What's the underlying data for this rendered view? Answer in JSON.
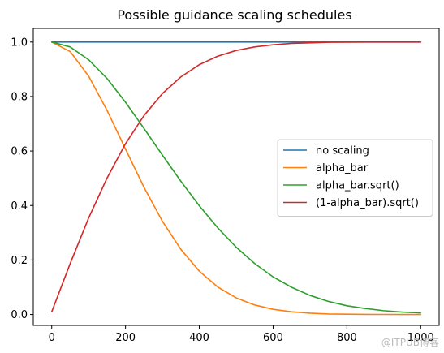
{
  "chart_data": {
    "type": "line",
    "title": "Possible guidance scaling schedules",
    "xlabel": "",
    "ylabel": "",
    "xlim": [
      -50,
      1050
    ],
    "ylim": [
      -0.04,
      1.05
    ],
    "xticks": [
      0,
      200,
      400,
      600,
      800,
      1000
    ],
    "yticks": [
      0.0,
      0.2,
      0.4,
      0.6,
      0.8,
      1.0
    ],
    "xtick_labels": [
      "0",
      "200",
      "400",
      "600",
      "800",
      "1000"
    ],
    "ytick_labels": [
      "0.0",
      "0.2",
      "0.4",
      "0.6",
      "0.8",
      "1.0"
    ],
    "grid": false,
    "legend_position": "center-right",
    "x": [
      0,
      50,
      100,
      150,
      200,
      250,
      300,
      350,
      400,
      450,
      500,
      550,
      600,
      650,
      700,
      750,
      800,
      850,
      900,
      950,
      1000
    ],
    "series": [
      {
        "name": "no scaling",
        "color": "#1f77b4",
        "values": [
          1.0,
          1.0,
          1.0,
          1.0,
          1.0,
          1.0,
          1.0,
          1.0,
          1.0,
          1.0,
          1.0,
          1.0,
          1.0,
          1.0,
          1.0,
          1.0,
          1.0,
          1.0,
          1.0,
          1.0,
          1.0
        ]
      },
      {
        "name": "alpha_bar",
        "color": "#ff7f0e",
        "values": [
          0.9999,
          0.965,
          0.875,
          0.749,
          0.607,
          0.467,
          0.342,
          0.239,
          0.159,
          0.101,
          0.061,
          0.035,
          0.019,
          0.01,
          0.005,
          0.002,
          0.001,
          0.0005,
          0.0002,
          0.0001,
          0.0
        ]
      },
      {
        "name": "alpha_bar.sqrt()",
        "color": "#2ca02c",
        "values": [
          0.9999,
          0.982,
          0.935,
          0.866,
          0.779,
          0.683,
          0.585,
          0.489,
          0.399,
          0.318,
          0.247,
          0.187,
          0.138,
          0.1,
          0.07,
          0.048,
          0.032,
          0.022,
          0.014,
          0.009,
          0.006
        ]
      },
      {
        "name": "(1-alpha_bar).sqrt()",
        "color": "#d62728",
        "values": [
          0.01,
          0.187,
          0.354,
          0.501,
          0.627,
          0.73,
          0.811,
          0.872,
          0.917,
          0.948,
          0.969,
          0.982,
          0.99,
          0.995,
          0.997,
          0.999,
          0.9995,
          0.9998,
          0.9999,
          1.0,
          1.0
        ]
      }
    ]
  },
  "watermark": "@ITPUB博客"
}
